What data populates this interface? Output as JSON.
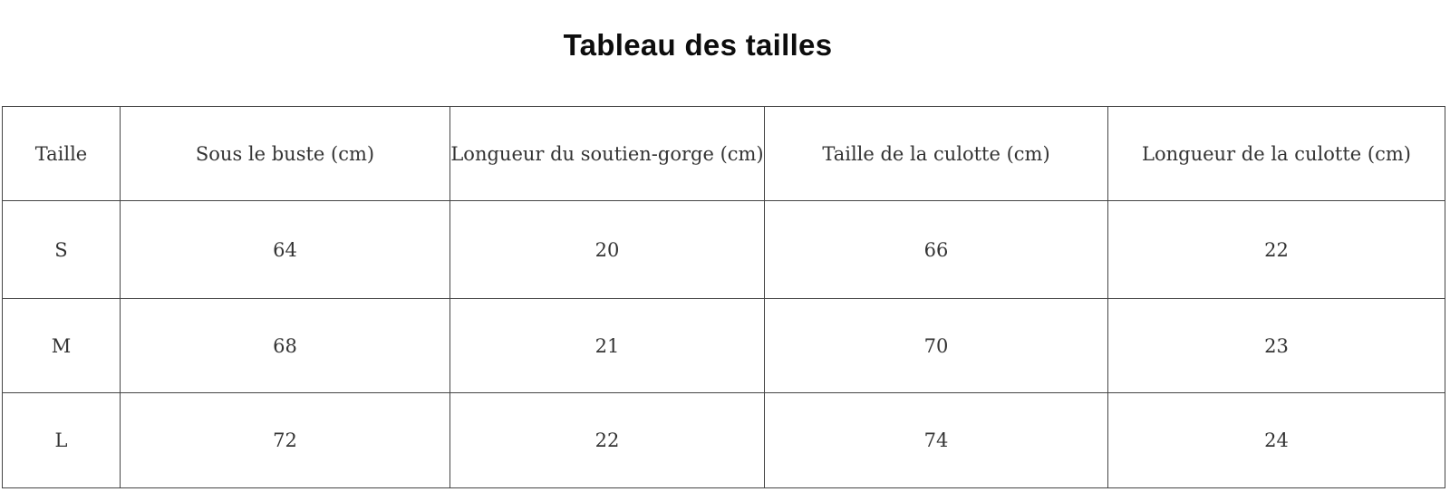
{
  "page": {
    "title": "Tableau des tailles"
  },
  "size_table": {
    "columns": [
      "Taille",
      "Sous le buste (cm)",
      "Longueur du soutien-gorge (cm)",
      "Taille de la culotte (cm)",
      "Longueur de la culotte (cm)"
    ],
    "rows": [
      [
        "S",
        "64",
        "20",
        "66",
        "22"
      ],
      [
        "M",
        "68",
        "21",
        "70",
        "23"
      ],
      [
        "L",
        "72",
        "22",
        "74",
        "24"
      ]
    ]
  },
  "colors": {
    "title_text": "#0d0d0d",
    "cell_text": "#333333",
    "border": "#454545",
    "background": "#ffffff"
  }
}
